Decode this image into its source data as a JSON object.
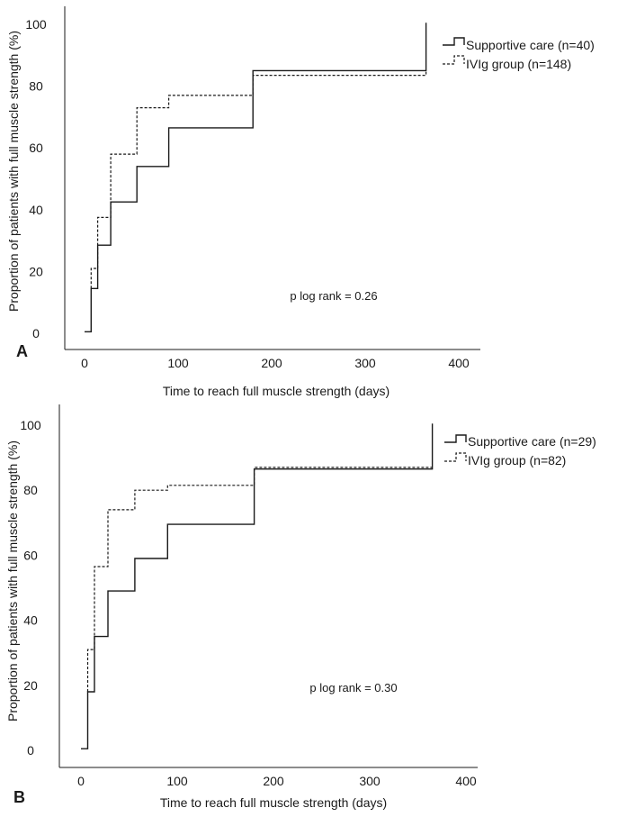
{
  "chart_data": [
    {
      "type": "line",
      "panel_label": "A",
      "xlabel": "Time to reach full muscle strength (days)",
      "ylabel": "Proportion of patients with full muscle strength (%)",
      "xlim": [
        -20,
        425
      ],
      "ylim": [
        -2,
        105
      ],
      "xticks": [
        "0",
        "100",
        "200",
        "300",
        "400"
      ],
      "yticks": [
        "0",
        "20",
        "40",
        "60",
        "80",
        "100"
      ],
      "annotation": "p log rank = 0.26",
      "legend_position": "top-right",
      "series": [
        {
          "name": "Supportive care (n=40)",
          "style": "solid",
          "points": [
            [
              0,
              0.5
            ],
            [
              7,
              0.5
            ],
            [
              7,
              14.5
            ],
            [
              14,
              14.5
            ],
            [
              14,
              28.5
            ],
            [
              28,
              28.5
            ],
            [
              28,
              42.5
            ],
            [
              56,
              42.5
            ],
            [
              56,
              54
            ],
            [
              90,
              54
            ],
            [
              90,
              66.5
            ],
            [
              180,
              66.5
            ],
            [
              180,
              85
            ],
            [
              365,
              85
            ],
            [
              365,
              100.5
            ]
          ]
        },
        {
          "name": "IVIg group (n=148)",
          "style": "dashed",
          "points": [
            [
              7,
              14.5
            ],
            [
              7,
              21
            ],
            [
              14,
              21
            ],
            [
              14,
              37.5
            ],
            [
              28,
              37.5
            ],
            [
              28,
              58
            ],
            [
              56,
              58
            ],
            [
              56,
              73
            ],
            [
              90,
              73
            ],
            [
              90,
              77
            ],
            [
              180,
              77
            ],
            [
              180,
              83.5
            ],
            [
              365,
              83.5
            ],
            [
              365,
              85
            ]
          ]
        }
      ]
    },
    {
      "type": "line",
      "panel_label": "B",
      "xlabel": "Time to reach full muscle strength (days)",
      "ylabel": "Proportion of patients with full muscle strength (%)",
      "xlim": [
        -20,
        425
      ],
      "ylim": [
        -4,
        106
      ],
      "xticks": [
        "0",
        "100",
        "200",
        "300",
        "400"
      ],
      "yticks": [
        "0",
        "20",
        "40",
        "60",
        "80",
        "100"
      ],
      "annotation": "p log rank = 0.30",
      "legend_position": "top-right",
      "series": [
        {
          "name": "Supportive care (n=29)",
          "style": "solid",
          "points": [
            [
              0,
              0.5
            ],
            [
              7,
              0.5
            ],
            [
              7,
              18
            ],
            [
              14,
              18
            ],
            [
              14,
              35
            ],
            [
              28,
              35
            ],
            [
              28,
              49
            ],
            [
              56,
              49
            ],
            [
              56,
              59
            ],
            [
              90,
              59
            ],
            [
              90,
              69.5
            ],
            [
              180,
              69.5
            ],
            [
              180,
              86.5
            ],
            [
              365,
              86.5
            ],
            [
              365,
              100.5
            ]
          ]
        },
        {
          "name": "IVIg group (n=82)",
          "style": "dashed",
          "points": [
            [
              7,
              18
            ],
            [
              7,
              31
            ],
            [
              14,
              31
            ],
            [
              14,
              56.5
            ],
            [
              28,
              56.5
            ],
            [
              28,
              74
            ],
            [
              56,
              74
            ],
            [
              56,
              80
            ],
            [
              90,
              80
            ],
            [
              90,
              81.5
            ],
            [
              180,
              81.5
            ],
            [
              180,
              87
            ],
            [
              365,
              87
            ]
          ]
        }
      ]
    }
  ]
}
